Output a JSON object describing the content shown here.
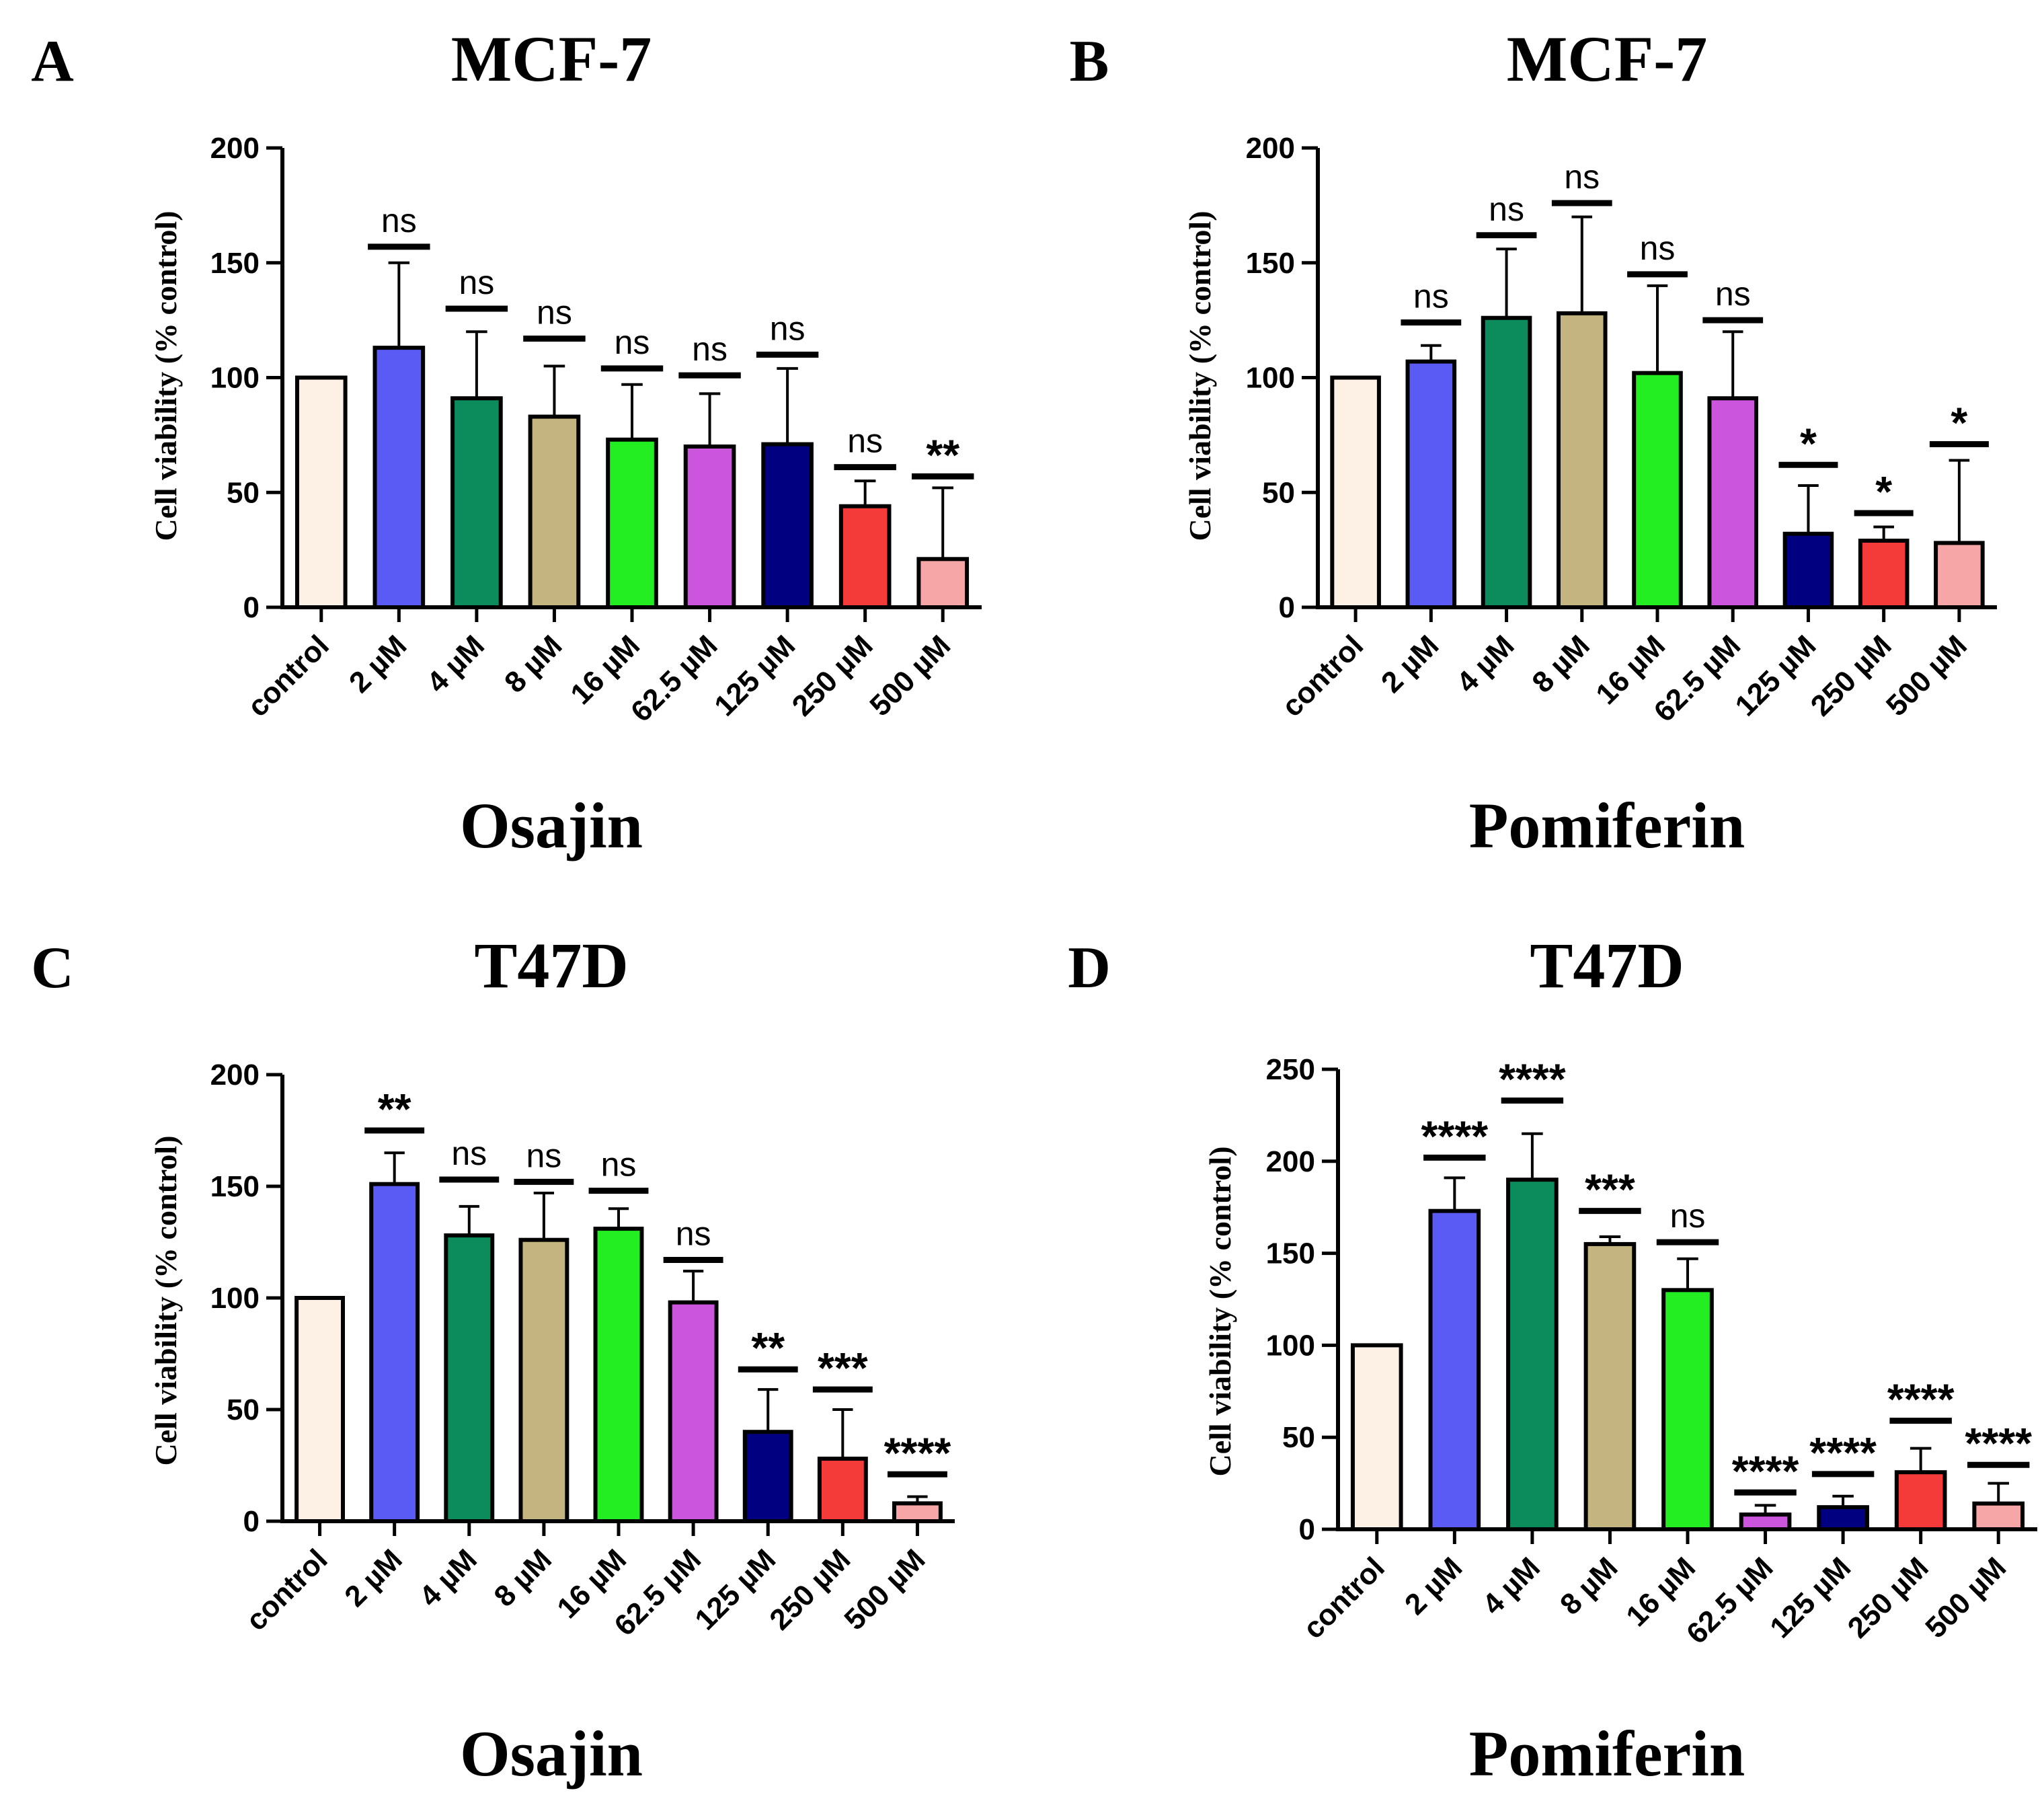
{
  "colors": {
    "bars": [
      "#fdf0e4",
      "#5a5af5",
      "#0c8c5c",
      "#c4b580",
      "#22ee22",
      "#cc55dd",
      "#000080",
      "#f53a3a",
      "#f6a6a6"
    ],
    "axis": "#000000"
  },
  "chart_data": [
    {
      "panel": "A",
      "type": "bar",
      "title": "MCF-7",
      "drug": "Osajin",
      "ylabel": "Cell viability (% control)",
      "xlabel": "",
      "ylim": [
        0,
        200
      ],
      "yticks": [
        0,
        50,
        100,
        150,
        200
      ],
      "categories": [
        "control",
        "2 µM",
        "4 µM",
        "8 µM",
        "16 µM",
        "62.5 µM",
        "125 µM",
        "250 µM",
        "500 µM"
      ],
      "values": [
        100,
        113,
        91,
        83,
        73,
        70,
        71,
        44,
        21
      ],
      "error_upper": [
        100,
        150,
        120,
        105,
        97,
        93,
        104,
        55,
        52
      ],
      "significance": [
        "",
        "ns",
        "ns",
        "ns",
        "ns",
        "ns",
        "ns",
        "ns",
        "**"
      ],
      "sig_line": [
        null,
        157,
        130,
        117,
        104,
        101,
        110,
        61,
        57
      ]
    },
    {
      "panel": "B",
      "type": "bar",
      "title": "MCF-7",
      "drug": "Pomiferin",
      "ylabel": "Cell viability (% control)",
      "xlabel": "",
      "ylim": [
        0,
        200
      ],
      "yticks": [
        0,
        50,
        100,
        150,
        200
      ],
      "categories": [
        "control",
        "2 µM",
        "4 µM",
        "8 µM",
        "16 µM",
        "62.5 µM",
        "125 µM",
        "250 µM",
        "500 µM"
      ],
      "values": [
        100,
        107,
        126,
        128,
        102,
        91,
        32,
        29,
        28
      ],
      "error_upper": [
        100,
        114,
        156,
        170,
        140,
        120,
        53,
        35,
        64
      ],
      "significance": [
        "",
        "ns",
        "ns",
        "ns",
        "ns",
        "ns",
        "*",
        "*",
        "*"
      ],
      "sig_line": [
        null,
        124,
        162,
        176,
        145,
        125,
        62,
        41,
        71
      ]
    },
    {
      "panel": "C",
      "type": "bar",
      "title": "T47D",
      "drug": "Osajin",
      "ylabel": "Cell viability (% control)",
      "xlabel": "",
      "ylim": [
        0,
        200
      ],
      "yticks": [
        0,
        50,
        100,
        150,
        200
      ],
      "categories": [
        "control",
        "2 µM",
        "4 µM",
        "8 µM",
        "16 µM",
        "62.5 µM",
        "125 µM",
        "250 µM",
        "500 µM"
      ],
      "values": [
        100,
        151,
        128,
        126,
        131,
        98,
        40,
        28,
        8
      ],
      "error_upper": [
        100,
        165,
        141,
        147,
        140,
        112,
        59,
        50,
        11
      ],
      "significance": [
        "",
        "**",
        "ns",
        "ns",
        "ns",
        "ns",
        "**",
        "***",
        "****"
      ],
      "sig_line": [
        null,
        175,
        153,
        152,
        148,
        117,
        68,
        59,
        21
      ]
    },
    {
      "panel": "D",
      "type": "bar",
      "title": "T47D",
      "drug": "Pomiferin",
      "ylabel": "Cell viability (% control)",
      "xlabel": "",
      "ylim": [
        0,
        250
      ],
      "yticks": [
        0,
        50,
        100,
        150,
        200,
        250
      ],
      "categories": [
        "control",
        "2 µM",
        "4 µM",
        "8 µM",
        "16 µM",
        "62.5 µM",
        "125 µM",
        "250 µM",
        "500 µM"
      ],
      "values": [
        100,
        173,
        190,
        155,
        130,
        8,
        12,
        31,
        14
      ],
      "error_upper": [
        100,
        191,
        215,
        159,
        147,
        13,
        18,
        44,
        25
      ],
      "significance": [
        "",
        "****",
        "****",
        "***",
        "ns",
        "****",
        "****",
        "****",
        "****"
      ],
      "sig_line": [
        null,
        202,
        233,
        173,
        156,
        20,
        30,
        59,
        35
      ]
    }
  ]
}
